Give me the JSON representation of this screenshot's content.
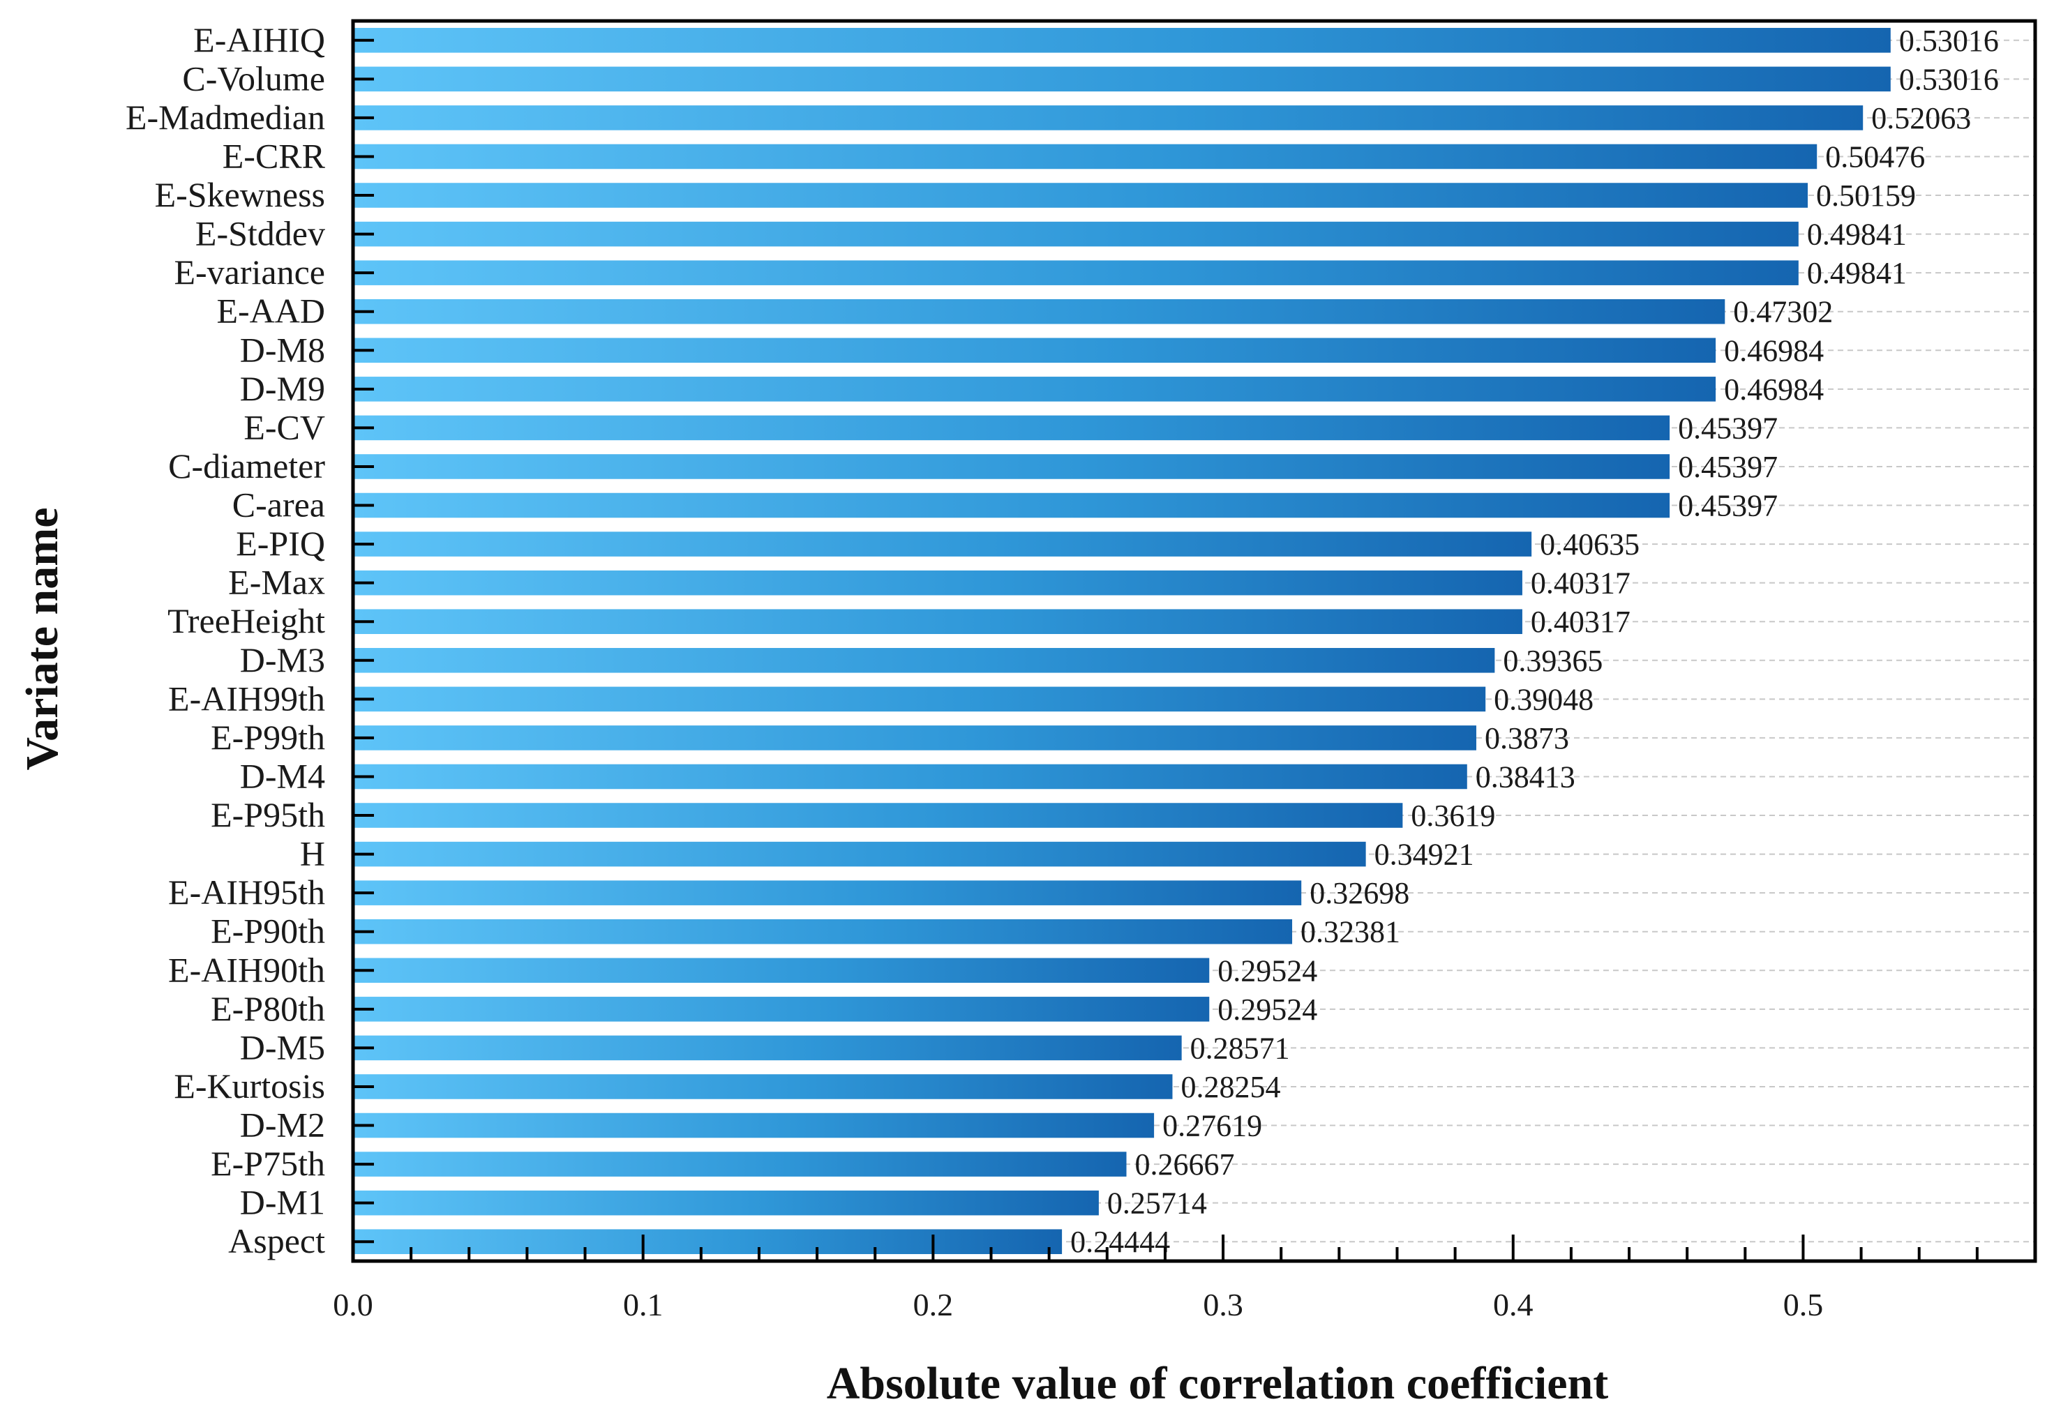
{
  "chart_data": {
    "type": "bar",
    "orientation": "horizontal",
    "xlabel": "Absolute value of correlation coefficient",
    "ylabel": "Variate name",
    "xlim": [
      0,
      0.58
    ],
    "xticks": [
      "0.0",
      "0.1",
      "0.2",
      "0.3",
      "0.4",
      "0.5"
    ],
    "grid": "horizontal dashed",
    "categories": [
      "E-AIHIQ",
      "C-Volume",
      "E-Madmedian",
      "E-CRR",
      "E-Skewness",
      "E-Stddev",
      "E-variance",
      "E-AAD",
      "D-M8",
      "D-M9",
      "E-CV",
      "C-diameter",
      "C-area",
      "E-PIQ",
      "E-Max",
      "TreeHeight",
      "D-M3",
      "E-AIH99th",
      "E-P99th",
      "D-M4",
      "E-P95th",
      "H",
      "E-AIH95th",
      "E-P90th",
      "E-AIH90th",
      "E-P80th",
      "D-M5",
      "E-Kurtosis",
      "D-M2",
      "E-P75th",
      "D-M1",
      "Aspect"
    ],
    "values": [
      0.53016,
      0.53016,
      0.52063,
      0.50476,
      0.50159,
      0.49841,
      0.49841,
      0.47302,
      0.46984,
      0.46984,
      0.45397,
      0.45397,
      0.45397,
      0.40635,
      0.40317,
      0.40317,
      0.39365,
      0.39048,
      0.3873,
      0.38413,
      0.3619,
      0.34921,
      0.32698,
      0.32381,
      0.29524,
      0.29524,
      0.28571,
      0.28254,
      0.27619,
      0.26667,
      0.25714,
      0.24444
    ],
    "value_labels": [
      "0.53016",
      "0.53016",
      "0.52063",
      "0.50476",
      "0.50159",
      "0.49841",
      "0.49841",
      "0.47302",
      "0.46984",
      "0.46984",
      "0.45397",
      "0.45397",
      "0.45397",
      "0.40635",
      "0.40317",
      "0.40317",
      "0.39365",
      "0.39048",
      "0.3873",
      "0.38413",
      "0.3619",
      "0.34921",
      "0.32698",
      "0.32381",
      "0.29524",
      "0.29524",
      "0.28571",
      "0.28254",
      "0.27619",
      "0.26667",
      "0.25714",
      "0.24444"
    ],
    "colors": {
      "bar_start": "#5ec4f8",
      "bar_mid": "#2f97d8",
      "bar_end": "#1565b0",
      "grid": "#c8c8c8",
      "axis": "#000000"
    }
  }
}
